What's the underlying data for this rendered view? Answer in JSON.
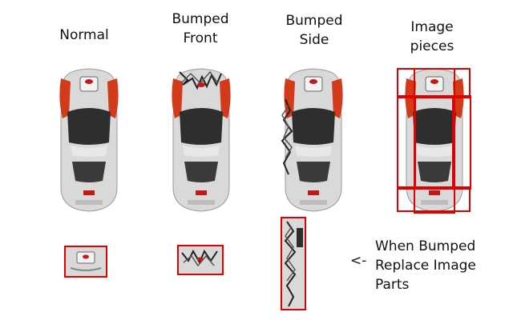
{
  "columns": [
    {
      "id": "normal",
      "label_lines": [
        "Normal"
      ]
    },
    {
      "id": "bumped-front",
      "label_lines": [
        "Bumped",
        "Front"
      ]
    },
    {
      "id": "bumped-side",
      "label_lines": [
        "Bumped",
        "Side"
      ]
    },
    {
      "id": "image-pieces",
      "label_lines": [
        "Image",
        "pieces"
      ]
    }
  ],
  "note": {
    "arrow": "<-",
    "lines": [
      "When Bumped",
      "Replace Image",
      "Parts"
    ]
  },
  "colors": {
    "outline": "#e00000",
    "car_accent": "#d23a1a",
    "car_body": "#d9d9d9",
    "window": "#333333"
  }
}
